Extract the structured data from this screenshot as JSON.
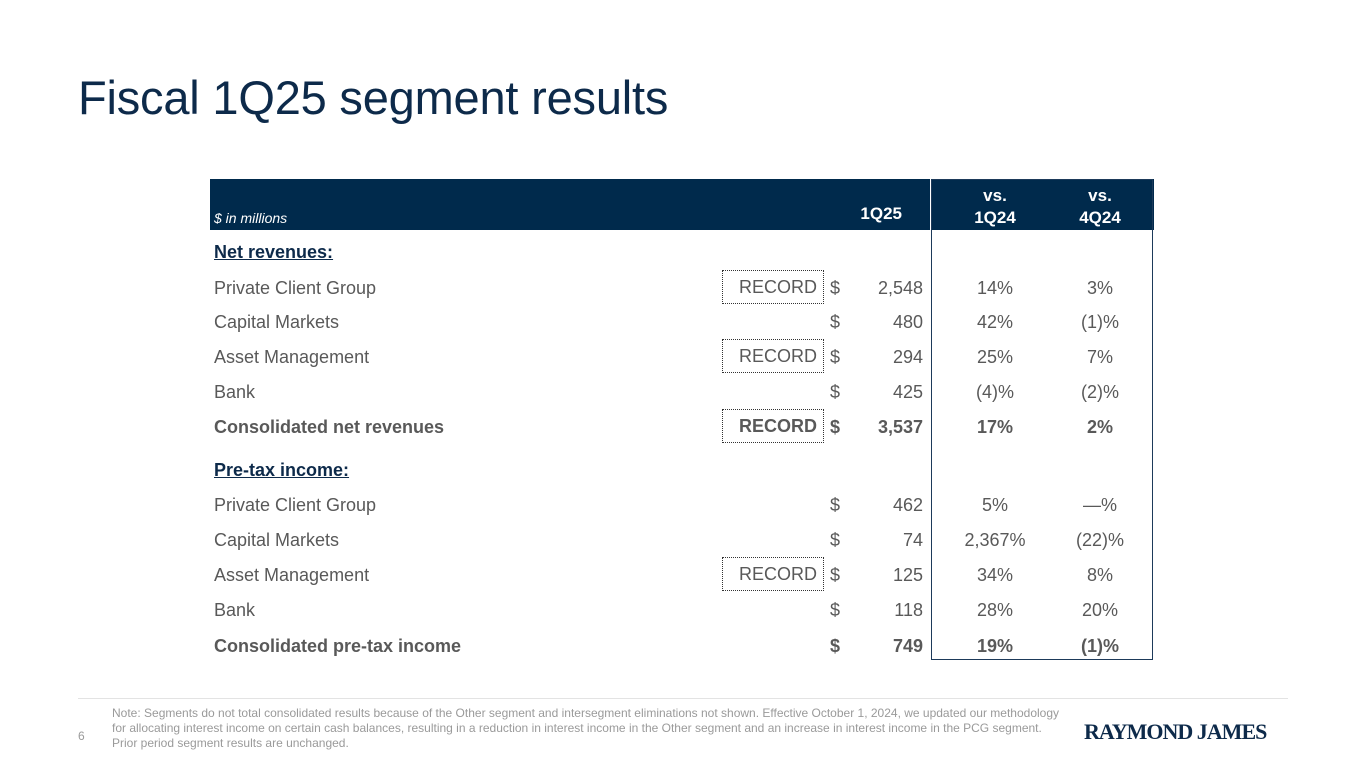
{
  "title": "Fiscal 1Q25 segment results",
  "table": {
    "units": "$ in millions",
    "headers": {
      "current": "1Q25",
      "vs1_top": "vs.",
      "vs1_bottom": "1Q24",
      "vs2_top": "vs.",
      "vs2_bottom": "4Q24"
    },
    "rows": [
      {
        "label": "Net revenues:",
        "type": "section"
      },
      {
        "label": "Private Client Group",
        "record": "RECORD",
        "dollar": "$",
        "value": "2,548",
        "vs1": "14%",
        "vs2": "3%"
      },
      {
        "label": "Capital Markets",
        "dollar": "$",
        "value": "480",
        "vs1": "42%",
        "vs2": "(1)%"
      },
      {
        "label": "Asset Management",
        "record": "RECORD",
        "dollar": "$",
        "value": "294",
        "vs1": "25%",
        "vs2": "7%"
      },
      {
        "label": "Bank",
        "dollar": "$",
        "value": "425",
        "vs1": "(4)%",
        "vs2": "(2)%"
      },
      {
        "label": "Consolidated net revenues",
        "type": "total",
        "record": "RECORD",
        "dollar": "$",
        "value": "3,537",
        "vs1": "17%",
        "vs2": "2%"
      },
      {
        "label": "Pre-tax income:",
        "type": "section"
      },
      {
        "label": "Private Client Group",
        "dollar": "$",
        "value": "462",
        "vs1": "5%",
        "vs2": "—%"
      },
      {
        "label": "Capital Markets",
        "dollar": "$",
        "value": "74",
        "vs1": "2,367%",
        "vs2": "(22)%"
      },
      {
        "label": "Asset Management",
        "record": "RECORD",
        "dollar": "$",
        "value": "125",
        "vs1": "34%",
        "vs2": "8%"
      },
      {
        "label": "Bank",
        "dollar": "$",
        "value": "118",
        "vs1": "28%",
        "vs2": "20%"
      },
      {
        "label": "Consolidated pre-tax income",
        "type": "total",
        "dollar": "$",
        "value": "749",
        "vs1": "19%",
        "vs2": "(1)%"
      }
    ]
  },
  "footer": {
    "page_number": "6",
    "note": "Note: Segments do not total consolidated results because of the Other segment and intersegment eliminations not shown.  Effective October 1, 2024, we updated our methodology for allocating interest income on certain cash balances, resulting in a reduction in interest income in the Other segment and an increase in interest income in the PCG segment.  Prior period segment results are unchanged.",
    "logo": "RAYMOND JAMES"
  },
  "colors": {
    "navy": "#002a4c",
    "text": "#595959",
    "title": "#0d2a4a"
  }
}
